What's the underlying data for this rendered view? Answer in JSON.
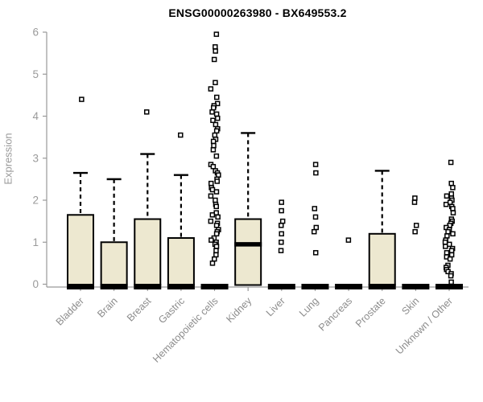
{
  "chart_data": {
    "type": "boxplot",
    "title": "ENSG00000263980 - BX649553.2",
    "ylabel": "Expression",
    "xlabel": "",
    "ylim": [
      0,
      6
    ],
    "yticks": [
      0,
      1,
      2,
      3,
      4,
      5,
      6
    ],
    "grid": false,
    "legend": "none",
    "colors": {
      "box_fill": "#EDE8D0",
      "box_stroke": "#000000",
      "axis": "#999999",
      "tick_label": "#9a9a9a",
      "category_label": "#8c8c8c",
      "title": "#000000",
      "background": "#ffffff"
    },
    "boxes": [
      {
        "label": "Bladder",
        "q1": 0,
        "median": 0.03,
        "q3": 1.65,
        "whisker_low": 0,
        "whisker_high": 2.65,
        "outliers": [
          4.4
        ]
      },
      {
        "label": "Brain",
        "q1": 0,
        "median": 0.03,
        "q3": 1.0,
        "whisker_low": 0,
        "whisker_high": 2.5,
        "outliers": []
      },
      {
        "label": "Breast",
        "q1": 0,
        "median": 0.03,
        "q3": 1.55,
        "whisker_low": 0,
        "whisker_high": 3.1,
        "outliers": [
          4.1
        ]
      },
      {
        "label": "Gastric",
        "q1": 0,
        "median": 0.03,
        "q3": 1.1,
        "whisker_low": 0,
        "whisker_high": 2.6,
        "outliers": [
          3.55
        ]
      },
      {
        "label": "Hematopoietic cells",
        "q1": 0,
        "median": 0,
        "q3": 0,
        "whisker_low": 0,
        "whisker_high": 0,
        "outliers": [
          5.95,
          5.65,
          5.55,
          5.35,
          4.8,
          4.65,
          4.45,
          4.3,
          4.25,
          4.2,
          4.1,
          4.05,
          3.95,
          3.9,
          3.8,
          3.7,
          3.65,
          3.55,
          3.45,
          3.4,
          3.3,
          3.2,
          3.05,
          2.85,
          2.8,
          2.7,
          2.65,
          2.6,
          2.5,
          2.45,
          2.4,
          2.3,
          2.25,
          2.2,
          2.1,
          2.0,
          1.9,
          1.85,
          1.7,
          1.65,
          1.6,
          1.5,
          1.45,
          1.4,
          1.3,
          1.25,
          1.2,
          1.1,
          1.05,
          1.0,
          0.95,
          0.9,
          0.8,
          0.7,
          0.6,
          0.5
        ]
      },
      {
        "label": "Kidney",
        "q1": 0,
        "median": 0.95,
        "q3": 1.55,
        "whisker_low": 0,
        "whisker_high": 3.6,
        "outliers": []
      },
      {
        "label": "Liver",
        "q1": 0,
        "median": 0.02,
        "q3": 0,
        "whisker_low": 0,
        "whisker_high": 0,
        "outliers": [
          1.95,
          1.75,
          1.5,
          1.4,
          1.2,
          1.0,
          0.8
        ]
      },
      {
        "label": "Lung",
        "q1": 0,
        "median": 0.02,
        "q3": 0,
        "whisker_low": 0,
        "whisker_high": 0,
        "outliers": [
          2.85,
          2.65,
          1.8,
          1.6,
          1.35,
          1.25,
          0.75
        ]
      },
      {
        "label": "Pancreas",
        "q1": 0,
        "median": 0.02,
        "q3": 0,
        "whisker_low": 0,
        "whisker_high": 0,
        "outliers": [
          1.05
        ]
      },
      {
        "label": "Prostate",
        "q1": 0,
        "median": 0.03,
        "q3": 1.2,
        "whisker_low": 0,
        "whisker_high": 2.7,
        "outliers": []
      },
      {
        "label": "Skin",
        "q1": 0,
        "median": 0.02,
        "q3": 0,
        "whisker_low": 0,
        "whisker_high": 0,
        "outliers": [
          2.05,
          1.95,
          1.4,
          1.25
        ]
      },
      {
        "label": "Unknown / Other",
        "q1": 0,
        "median": 0.02,
        "q3": 0,
        "whisker_low": 0,
        "whisker_high": 0,
        "outliers": [
          2.9,
          2.4,
          2.3,
          2.15,
          2.1,
          2.05,
          2.0,
          1.95,
          1.9,
          1.85,
          1.8,
          1.7,
          1.55,
          1.5,
          1.45,
          1.4,
          1.35,
          1.3,
          1.25,
          1.2,
          1.15,
          1.05,
          1.0,
          0.95,
          0.9,
          0.85,
          0.8,
          0.75,
          0.7,
          0.65,
          0.6,
          0.45,
          0.4,
          0.35,
          0.3,
          0.25,
          0.2,
          0.05
        ]
      }
    ]
  }
}
